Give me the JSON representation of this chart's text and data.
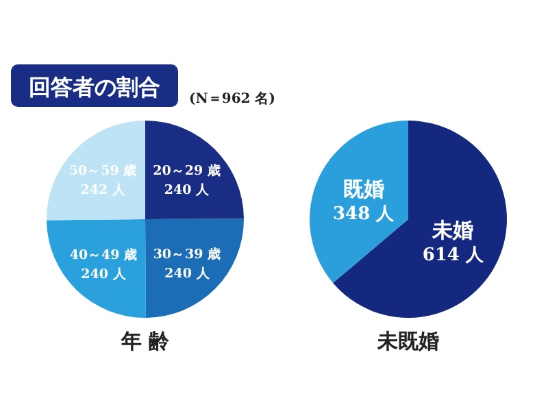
{
  "chart_data": [
    {
      "type": "pie",
      "title": "回答者の割合",
      "annotations": [
        "(N＝962 名)"
      ],
      "xlabel": "年 齢",
      "categories": [
        "20～29 歳",
        "30～39 歳",
        "40～49 歳",
        "50～59 歳"
      ],
      "values": [
        240,
        240,
        240,
        242
      ],
      "value_labels": [
        "240 人",
        "240 人",
        "240 人",
        "242 人"
      ],
      "colors": [
        "#1a2d84",
        "#1b6db5",
        "#2aa0dc",
        "#bde3f5"
      ]
    },
    {
      "type": "pie",
      "xlabel": "未既婚",
      "categories": [
        "未婚",
        "既婚"
      ],
      "values": [
        614,
        348
      ],
      "value_labels": [
        "614 人",
        "348 人"
      ],
      "colors": [
        "#14287f",
        "#2b9fdc"
      ]
    }
  ]
}
